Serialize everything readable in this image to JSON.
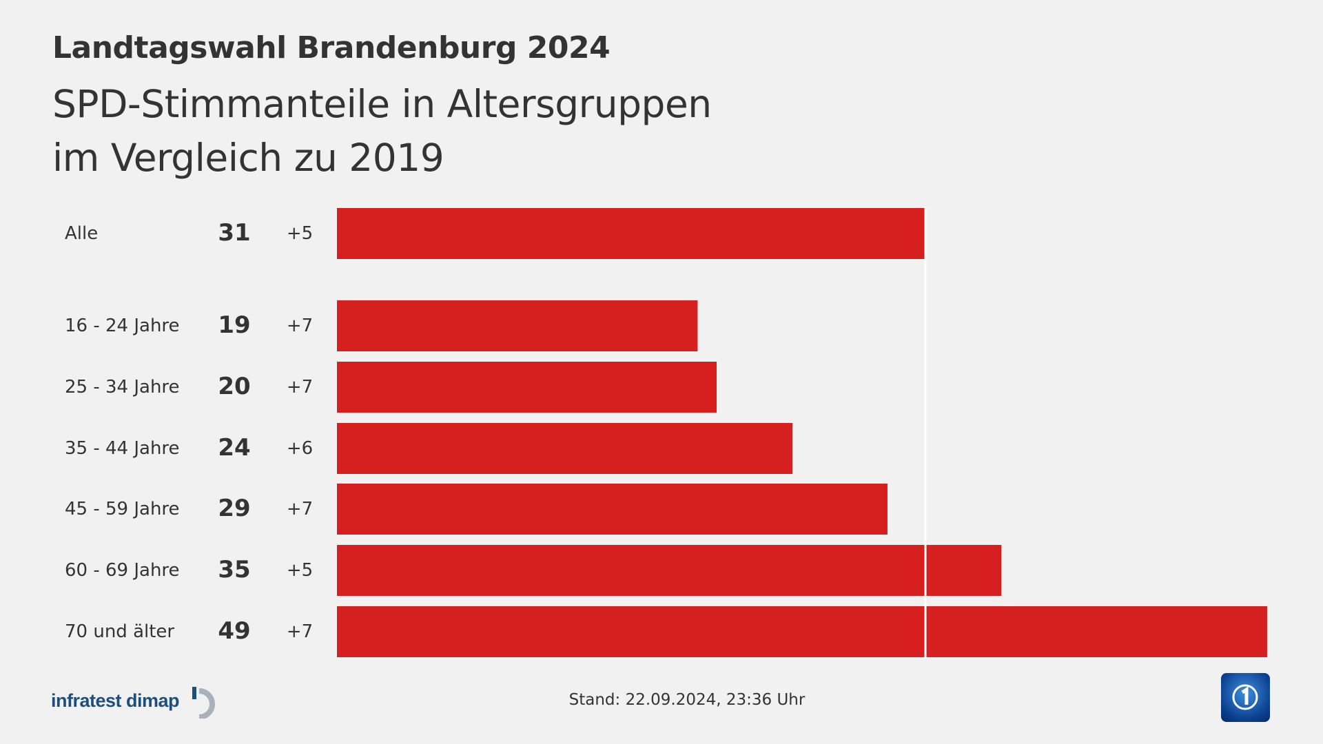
{
  "header": {
    "title": "Landtagswahl Brandenburg 2024",
    "subtitle_line1": "SPD-Stimmanteile in Altersgruppen",
    "subtitle_line2": "im Vergleich zu 2019"
  },
  "chart_data": {
    "type": "bar",
    "orientation": "horizontal",
    "title": "Landtagswahl Brandenburg 2024",
    "subtitle": "SPD-Stimmanteile in Altersgruppen im Vergleich zu 2019",
    "categories": [
      "Alle",
      "16 - 24 Jahre",
      "25 - 34 Jahre",
      "35 - 44 Jahre",
      "45 - 59 Jahre",
      "60 - 69 Jahre",
      "70 und älter"
    ],
    "values": [
      31,
      19,
      20,
      24,
      29,
      35,
      49
    ],
    "changes": [
      "+5",
      "+7",
      "+7",
      "+6",
      "+7",
      "+5",
      "+7"
    ],
    "reference_line": 31,
    "xlim": [
      0,
      49
    ],
    "bar_color": "#d62020",
    "grid": false
  },
  "footer": {
    "source_logo": "infratest dimap",
    "stand": "Stand:  22.09.2024, 23:36 Uhr",
    "ard_logo": "ARD Das Erste"
  }
}
